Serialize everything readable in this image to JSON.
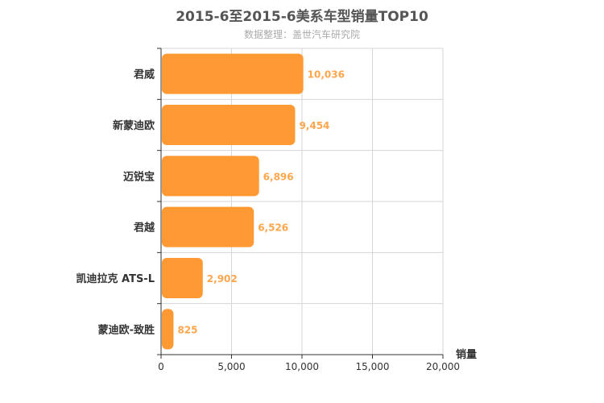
{
  "header": {
    "title": "2015-6至2015-6美系车型销量TOP10",
    "subtitle": "数据整理：盖世汽车研究院"
  },
  "chart_data": {
    "type": "bar",
    "orientation": "horizontal",
    "title": "2015-6至2015-6美系车型销量TOP10",
    "subtitle": "数据整理：盖世汽车研究院",
    "categories": [
      "君威",
      "新蒙迪欧",
      "迈锐宝",
      "君越",
      "凯迪拉克 ATS-L",
      "蒙迪欧-致胜"
    ],
    "values": [
      10036,
      9454,
      6896,
      6526,
      2902,
      825
    ],
    "value_labels": [
      "10,036",
      "9,454",
      "6,896",
      "6,526",
      "2,902",
      "825"
    ],
    "xlabel": "销量",
    "ylabel": "",
    "xlim": [
      0,
      20000
    ],
    "xticks": [
      0,
      5000,
      10000,
      15000,
      20000
    ],
    "xtick_labels": [
      "0",
      "5,000",
      "10,000",
      "15,000",
      "20,000"
    ],
    "grid": true,
    "colors": {
      "bar": "#ff9933",
      "label": "#ffa64d",
      "grid": "#d6d6d6",
      "axis": "#333333"
    }
  }
}
